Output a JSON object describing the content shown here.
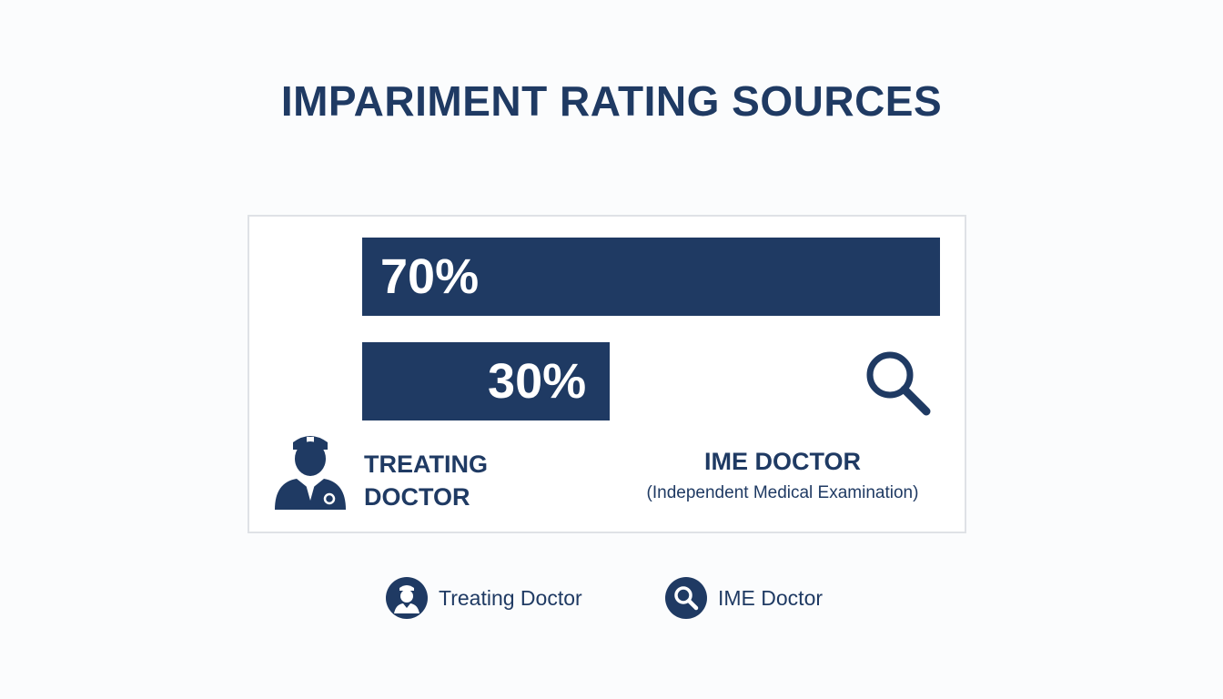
{
  "chart_data": {
    "type": "bar",
    "orientation": "horizontal",
    "title": "IMPARIMENT RATING SOURCES",
    "categories": [
      "TREATING DOCTOR",
      "IME DOCTOR"
    ],
    "annotations": [
      "(Independent Medical Examination)"
    ],
    "values": [
      70,
      30
    ],
    "value_labels": [
      "70%",
      "30%"
    ],
    "color": "#1f3a63",
    "legend": [
      "Treating Doctor",
      "IME Doctor"
    ]
  }
}
